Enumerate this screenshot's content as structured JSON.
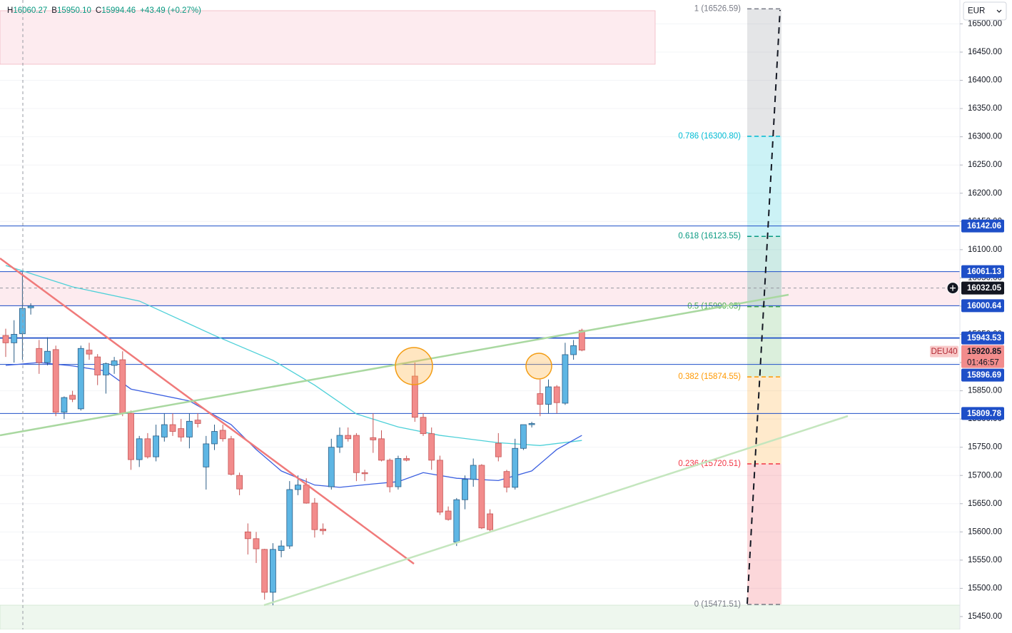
{
  "header": {
    "items": [
      {
        "key": "H",
        "value": "16060.27"
      },
      {
        "key": "B",
        "value": "15950.10"
      },
      {
        "key": "C",
        "value": "15994.46"
      },
      {
        "key": "",
        "value": "+43.49 (+0.27%)"
      }
    ]
  },
  "currency": "EUR",
  "chart_data": {
    "type": "candlestick",
    "up_color": "#5eb6e4",
    "up_border": "#2a5d86",
    "down_color": "#f28c8c",
    "down_border": "#c55555",
    "open": [
      15948,
      15935,
      15951,
      15997,
      15925,
      15900,
      15923,
      15812,
      15842,
      15818,
      15922,
      15910,
      15878,
      15895,
      15905,
      15810,
      15728,
      15765,
      15733,
      15768,
      15790,
      15783,
      15768,
      15798,
      15715,
      15756,
      15780,
      15765,
      15700,
      15600,
      15588,
      15569,
      15493,
      15567,
      15575,
      15675,
      15683,
      15651,
      15605,
      15680,
      15750,
      15771,
      15771,
      15705,
      15767,
      15765,
      15727,
      15680,
      15730,
      15876,
      15803,
      15774,
      15727,
      15637,
      15582,
      15657,
      15693,
      15718,
      15632,
      15757,
      15707,
      15679,
      15748,
      15790,
      15845,
      15826,
      15857,
      15828,
      15914,
      15957
    ],
    "high": [
      15960,
      15975,
      16060,
      16005,
      15940,
      15945,
      15930,
      15840,
      15850,
      15930,
      15935,
      15915,
      15900,
      15910,
      15920,
      15815,
      15770,
      15775,
      15790,
      15810,
      15810,
      15800,
      15810,
      15810,
      15770,
      15790,
      15790,
      15770,
      15705,
      15615,
      15600,
      15570,
      15580,
      15585,
      15690,
      15700,
      15695,
      15660,
      15615,
      15765,
      15785,
      15785,
      15775,
      15710,
      15810,
      15780,
      15730,
      15735,
      15735,
      15900,
      15810,
      15785,
      15735,
      15645,
      15660,
      15700,
      15730,
      15720,
      15640,
      15775,
      15710,
      15765,
      15790,
      15795,
      15870,
      15870,
      15860,
      15935,
      15940,
      15960
    ],
    "low": [
      15910,
      15900,
      15905,
      15985,
      15880,
      15895,
      15805,
      15800,
      15830,
      15815,
      15905,
      15860,
      15845,
      15880,
      15805,
      15710,
      15715,
      15730,
      15725,
      15760,
      15770,
      15760,
      15748,
      15785,
      15675,
      15745,
      15760,
      15700,
      15665,
      15560,
      15545,
      15480,
      15470,
      15555,
      15570,
      15665,
      15650,
      15590,
      15595,
      15675,
      15740,
      15760,
      15690,
      15690,
      15740,
      15725,
      15670,
      15675,
      15725,
      15795,
      15770,
      15710,
      15630,
      15620,
      15575,
      15640,
      15680,
      15605,
      15600,
      15725,
      15670,
      15675,
      15745,
      15785,
      15805,
      15810,
      15810,
      15825,
      15905,
      15920
    ],
    "close": [
      15935,
      15950,
      15996,
      16000,
      15900,
      15920,
      15812,
      15838,
      15835,
      15925,
      15915,
      15878,
      15898,
      15903,
      15810,
      15728,
      15765,
      15733,
      15770,
      15790,
      15778,
      15768,
      15796,
      15792,
      15756,
      15778,
      15765,
      15702,
      15676,
      15588,
      15570,
      15493,
      15569,
      15575,
      15675,
      15683,
      15651,
      15604,
      15602,
      15750,
      15771,
      15765,
      15705,
      15703,
      15763,
      15727,
      15680,
      15730,
      15727,
      15803,
      15774,
      15727,
      15635,
      15622,
      15657,
      15693,
      15718,
      15607,
      15604,
      15733,
      15679,
      15748,
      15790,
      15792,
      15826,
      15857,
      15829,
      15914,
      15930,
      15922
    ],
    "moving_averages": [
      {
        "color": "#4dd0d8",
        "x": [
          0,
          8,
          16,
          25,
          32,
          37,
          42,
          47,
          52,
          59,
          64,
          69
        ],
        "values": [
          16072,
          16034,
          16009,
          15948,
          15904,
          15860,
          15809,
          15786,
          15771,
          15758,
          15753,
          15762
        ]
      },
      {
        "color": "#3b5fe0",
        "x": [
          0,
          4,
          8,
          12,
          15,
          22,
          27,
          30,
          33,
          37,
          40,
          44,
          47,
          50,
          54,
          59,
          63,
          66,
          69
        ],
        "values": [
          15895,
          15900,
          15894,
          15885,
          15853,
          15832,
          15790,
          15746,
          15708,
          15683,
          15679,
          15685,
          15689,
          15705,
          15695,
          15691,
          15708,
          15746,
          15771
        ]
      }
    ],
    "price_lines": [
      {
        "value": 16142.06,
        "color": "#1e4fc8"
      },
      {
        "value": 16061.13,
        "color": "#1e4fc8"
      },
      {
        "value": 16000.64,
        "color": "#1e4fc8"
      },
      {
        "value": 15943.53,
        "color": "#1e4fc8"
      },
      {
        "value": 15896.69,
        "color": "#1e4fc8"
      },
      {
        "value": 15809.78,
        "color": "#1e4fc8"
      }
    ],
    "crosshair_price": 16032.05,
    "last_price": {
      "value": 15920.85,
      "countdown": "01:46:57",
      "symbol": "DEU40",
      "color": "#f28c8c"
    },
    "fib_levels": [
      {
        "value": 16526.59,
        "label": "1 (16526.59)",
        "color": "#787b86"
      },
      {
        "value": 16300.8,
        "label": "0.786 (16300.80)",
        "color": "#00bcd4"
      },
      {
        "value": 16123.55,
        "label": "0.618 (16123.55)",
        "color": "#089981"
      },
      {
        "value": 15999.05,
        "label": "0.5 (15999.05)",
        "color": "#4caf50"
      },
      {
        "value": 15874.55,
        "label": "0.382 (15874.55)",
        "color": "#ff9800"
      },
      {
        "value": 15720.51,
        "label": "0.236 (15720.51)",
        "color": "#f23645"
      },
      {
        "value": 15471.51,
        "label": "0 (15471.51)",
        "color": "#787b86"
      }
    ],
    "ylim": [
      15427.2,
      16542.3
    ],
    "grid": true,
    "yticks": [
      {
        "value": 15450,
        "label": "15450.00"
      },
      {
        "value": 15500,
        "label": "15500.00"
      },
      {
        "value": 15550,
        "label": "15550.00"
      },
      {
        "value": 15600,
        "label": "15600.00"
      },
      {
        "value": 15650,
        "label": "15650.00"
      },
      {
        "value": 15700,
        "label": "15700.00"
      },
      {
        "value": 15750,
        "label": "15750.00"
      },
      {
        "value": 15800,
        "label": "15800.00"
      },
      {
        "value": 15850,
        "label": "15850.00"
      },
      {
        "value": 15900,
        "label": "15900.00"
      },
      {
        "value": 15950,
        "label": "15950.00"
      },
      {
        "value": 16000,
        "label": "16000.00"
      },
      {
        "value": 16050,
        "label": "16050.00"
      },
      {
        "value": 16100,
        "label": "16100.00"
      },
      {
        "value": 16150,
        "label": "16150.00"
      },
      {
        "value": 16200,
        "label": "16200.00"
      },
      {
        "value": 16250,
        "label": "16250.00"
      },
      {
        "value": 16300,
        "label": "16300.00"
      },
      {
        "value": 16350,
        "label": "16350.00"
      },
      {
        "value": 16400,
        "label": "16400.00"
      },
      {
        "value": 16450,
        "label": "16450.00"
      },
      {
        "value": 16500,
        "label": "16500.00"
      }
    ]
  }
}
